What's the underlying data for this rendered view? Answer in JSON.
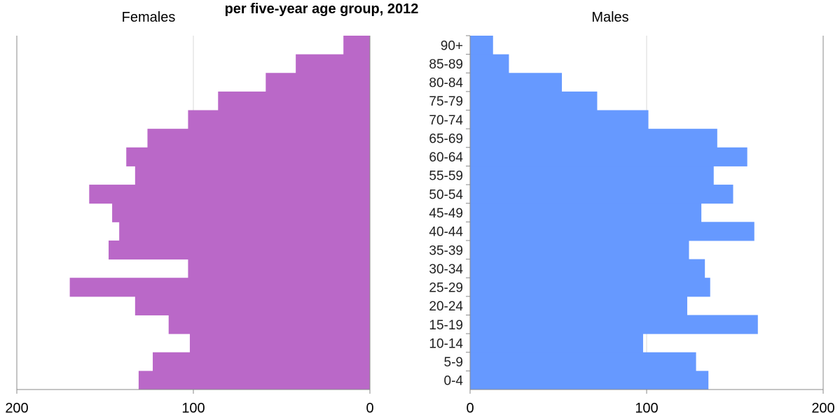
{
  "chart_data": {
    "type": "bar",
    "orientation": "horizontal",
    "title": "per five-year age group, 2012",
    "categories": [
      "0-4",
      "5-9",
      "10-14",
      "15-19",
      "20-24",
      "25-29",
      "30-34",
      "35-39",
      "40-44",
      "45-49",
      "50-54",
      "55-59",
      "60-64",
      "65-69",
      "70-74",
      "75-79",
      "80-84",
      "85-89",
      "90+"
    ],
    "series": [
      {
        "name": "Females",
        "values": [
          131,
          123,
          102,
          114,
          133,
          170,
          103,
          148,
          142,
          146,
          159,
          133,
          138,
          126,
          103,
          86,
          59,
          42,
          15
        ],
        "color": "#BA68C8",
        "xlim": [
          200,
          0
        ],
        "xticks": [
          "200",
          "100",
          "0"
        ]
      },
      {
        "name": "Males",
        "values": [
          135,
          128,
          98,
          163,
          123,
          136,
          133,
          124,
          161,
          131,
          149,
          138,
          157,
          140,
          101,
          72,
          52,
          22,
          13
        ],
        "color": "#6699FF",
        "xlim": [
          0,
          200
        ],
        "xticks": [
          "0",
          "100",
          "200"
        ]
      }
    ],
    "grid": true,
    "gridline_color": "#D9D9D9"
  }
}
